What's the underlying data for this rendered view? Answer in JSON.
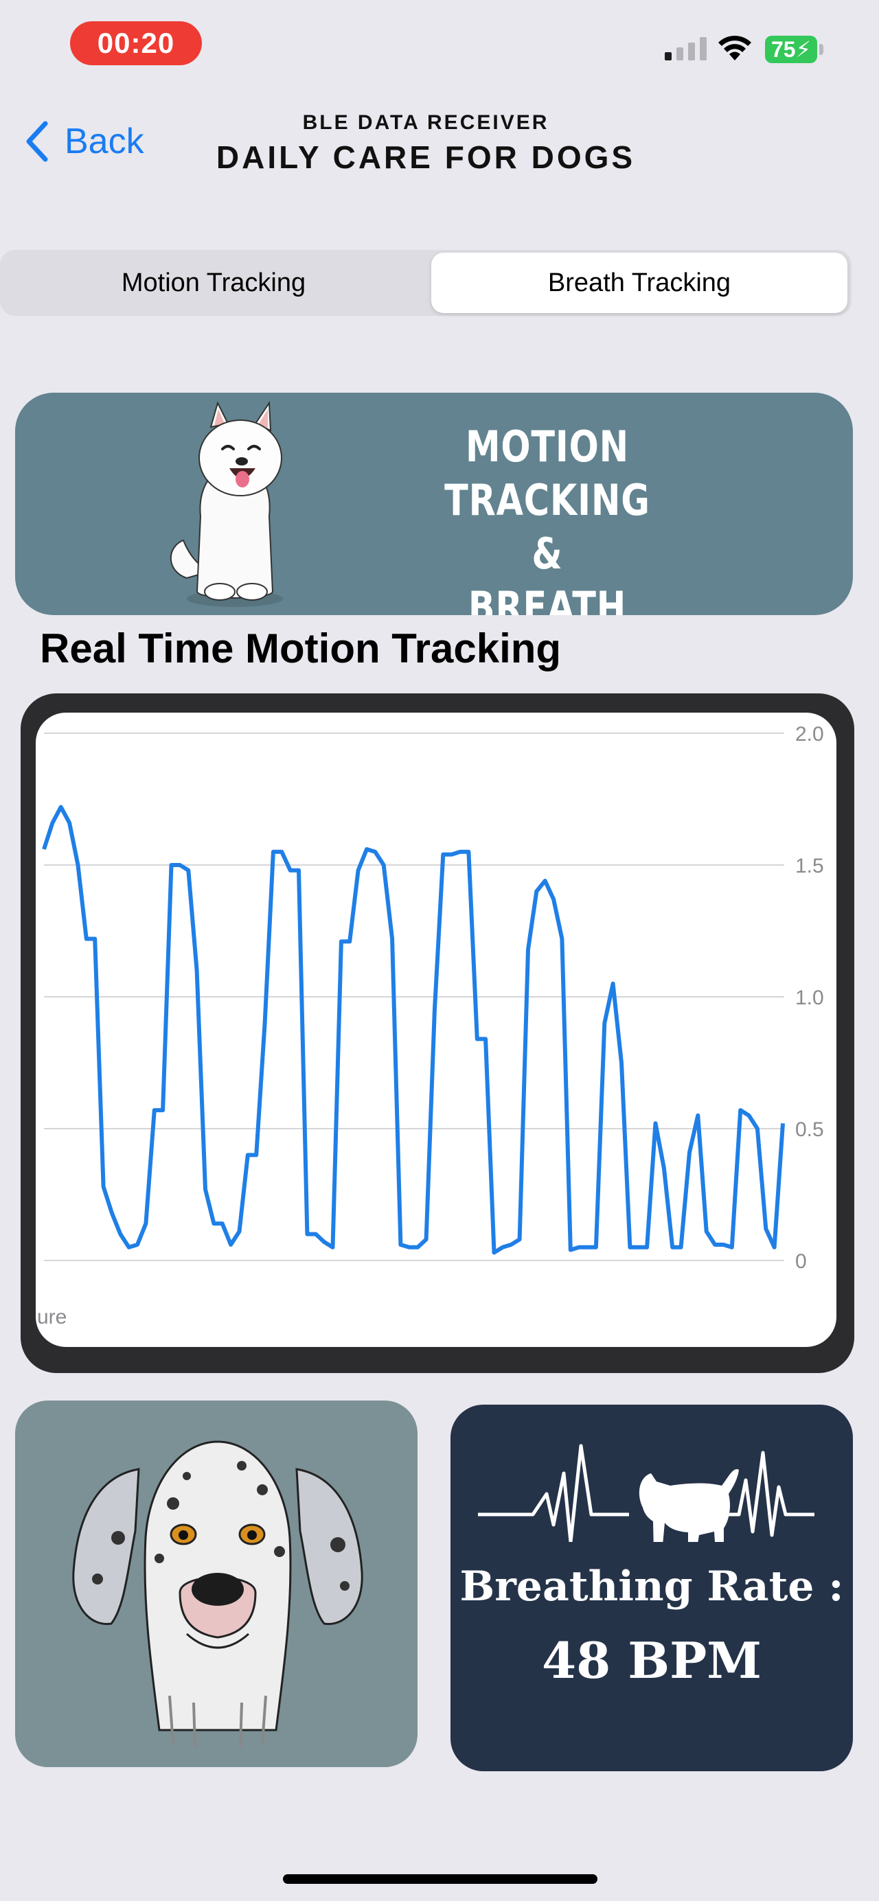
{
  "status_bar": {
    "time": "00:20",
    "battery": "75"
  },
  "nav": {
    "back_label": "Back",
    "subtitle": "BLE DATA RECEIVER",
    "title": "DAILY CARE FOR DOGS"
  },
  "segments": [
    {
      "label": "Motion Tracking",
      "selected": false
    },
    {
      "label": "Breath Tracking",
      "selected": true
    }
  ],
  "banner": {
    "line1": "MOTION TRACKING",
    "line2": "&",
    "line3": "BREATH TRACKING"
  },
  "section_title": "Real Time Motion Tracking",
  "chart_data": {
    "type": "line",
    "title": "",
    "xlabel": "",
    "ylabel": "",
    "x_axis_fragment": "ure",
    "ylim": [
      0,
      2.0
    ],
    "y_ticks": [
      "0",
      "0.5",
      "1.0",
      "1.5",
      "2.0"
    ],
    "grid": true,
    "series_color": "#1f7fe6",
    "series": [
      {
        "values": [
          1.56,
          1.66,
          1.72,
          1.66,
          1.5,
          1.22,
          1.22,
          0.28,
          0.18,
          0.1,
          0.05,
          0.06,
          0.14,
          0.57,
          0.57,
          1.5,
          1.5,
          1.48,
          1.1,
          0.27,
          0.14,
          0.14,
          0.06,
          0.11,
          0.4,
          0.4,
          0.9,
          1.55,
          1.55,
          1.48,
          1.48,
          0.1,
          0.1,
          0.07,
          0.05,
          1.21,
          1.21,
          1.48,
          1.56,
          1.55,
          1.5,
          1.22,
          0.06,
          0.05,
          0.05,
          0.08,
          0.95,
          1.54,
          1.54,
          1.55,
          1.55,
          0.84,
          0.84,
          0.03,
          0.05,
          0.06,
          0.08,
          1.18,
          1.4,
          1.44,
          1.37,
          1.22,
          0.04,
          0.05,
          0.05,
          0.05,
          0.9,
          1.05,
          0.75,
          0.05,
          0.05,
          0.05,
          0.52,
          0.35,
          0.05,
          0.05,
          0.41,
          0.55,
          0.11,
          0.06,
          0.06,
          0.05,
          0.57,
          0.55,
          0.5,
          0.12,
          0.05,
          0.52
        ]
      }
    ]
  },
  "breathing": {
    "label": "Breathing Rate :",
    "value": "48 BPM"
  },
  "colors": {
    "accent": "#1a7cf2",
    "banner": "#62838f",
    "breath_card": "#253349",
    "status_red": "#ee3b33"
  }
}
